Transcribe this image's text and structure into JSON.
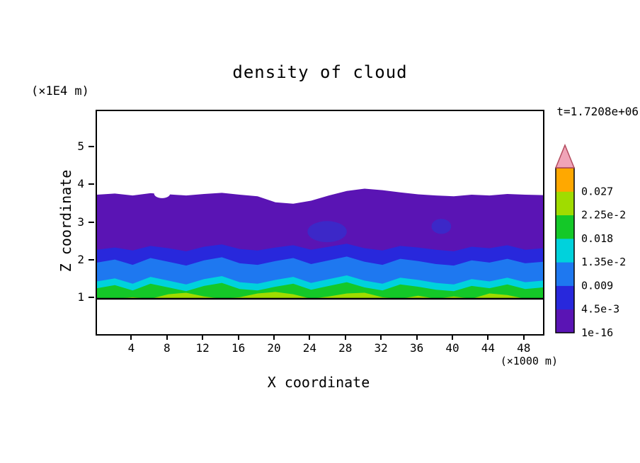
{
  "title": "density of cloud",
  "annotations": {
    "time": "t=1.7208e+06"
  },
  "axes": {
    "x": {
      "label": "X coordinate",
      "unit": "(×1000 m)",
      "ticks": [
        4,
        8,
        12,
        16,
        20,
        24,
        28,
        32,
        36,
        40,
        44,
        48
      ],
      "range": [
        0,
        50
      ]
    },
    "z": {
      "label": "Z coordinate",
      "unit": "(×1E4 m)",
      "ticks": [
        1,
        2,
        3,
        4,
        5
      ],
      "range": [
        0.06,
        5.98
      ]
    }
  },
  "colorbar": {
    "labels_bottom_to_top": [
      "1e-16",
      "4.5e-3",
      "0.009",
      "1.35e-2",
      "0.018",
      "2.25e-2",
      "0.027"
    ],
    "segment_colors_bottom_to_top": [
      "#5a14b4",
      "#2828dc",
      "#1e78f0",
      "#00d2dc",
      "#14c828",
      "#a0dc00",
      "#ffa800"
    ],
    "arrow_fill": "#f0a4b8",
    "arrow_stroke": "#b44b5e"
  },
  "chart_data": {
    "type": "heatmap",
    "subtype": "filled-contour",
    "title": "density of cloud",
    "xlabel": "X coordinate (×1000 m)",
    "ylabel": "Z coordinate (×1E4 m)",
    "xlim": [
      0,
      50
    ],
    "zlim": [
      0.06,
      5.98
    ],
    "levels": [
      "1e-16",
      "4.5e-3",
      "0.009",
      "1.35e-2",
      "0.018",
      "2.25e-2",
      "0.027"
    ],
    "base_z": 1.0,
    "x_samples": [
      0,
      2,
      4,
      6,
      8,
      10,
      12,
      14,
      16,
      18,
      20,
      22,
      24,
      26,
      28,
      30,
      32,
      34,
      36,
      38,
      40,
      42,
      44,
      46,
      48,
      50
    ],
    "bands_bottom_value_first": [
      {
        "name": "band-1e-16",
        "color": "#5a14b4",
        "top": [
          3.76,
          3.79,
          3.74,
          3.8,
          3.77,
          3.74,
          3.78,
          3.81,
          3.76,
          3.72,
          3.56,
          3.52,
          3.6,
          3.74,
          3.86,
          3.92,
          3.88,
          3.82,
          3.77,
          3.74,
          3.72,
          3.76,
          3.74,
          3.78,
          3.76,
          3.75
        ]
      },
      {
        "name": "band-4.5e-3",
        "color": "#2828dc",
        "top": [
          2.3,
          2.36,
          2.28,
          2.4,
          2.34,
          2.26,
          2.38,
          2.44,
          2.32,
          2.28,
          2.36,
          2.42,
          2.3,
          2.38,
          2.46,
          2.34,
          2.28,
          2.4,
          2.36,
          2.3,
          2.26,
          2.38,
          2.34,
          2.42,
          2.3,
          2.34
        ]
      },
      {
        "name": "band-0.009",
        "color": "#1e78f0",
        "top": [
          1.96,
          2.04,
          1.9,
          2.08,
          1.98,
          1.88,
          2.02,
          2.1,
          1.94,
          1.9,
          2.0,
          2.08,
          1.92,
          2.02,
          2.12,
          1.98,
          1.9,
          2.06,
          2.0,
          1.92,
          1.88,
          2.02,
          1.96,
          2.06,
          1.94,
          1.98
        ]
      },
      {
        "name": "band-1.35e-2",
        "color": "#00d2dc",
        "top": [
          1.46,
          1.54,
          1.4,
          1.58,
          1.48,
          1.38,
          1.52,
          1.6,
          1.44,
          1.4,
          1.5,
          1.58,
          1.42,
          1.52,
          1.62,
          1.48,
          1.4,
          1.56,
          1.5,
          1.42,
          1.38,
          1.52,
          1.46,
          1.56,
          1.44,
          1.48
        ]
      },
      {
        "name": "band-0.018",
        "color": "#14c828",
        "top": [
          1.28,
          1.36,
          1.22,
          1.4,
          1.3,
          1.2,
          1.34,
          1.42,
          1.26,
          1.22,
          1.32,
          1.4,
          1.24,
          1.34,
          1.44,
          1.3,
          1.22,
          1.38,
          1.32,
          1.24,
          1.2,
          1.34,
          1.28,
          1.38,
          1.26,
          1.3
        ]
      },
      {
        "name": "band-2.25e-2",
        "color": "#a0dc00",
        "top": [
          1.0,
          1.0,
          1.04,
          1.0,
          1.12,
          1.16,
          1.06,
          1.0,
          1.04,
          1.14,
          1.18,
          1.12,
          1.0,
          1.06,
          1.14,
          1.16,
          1.04,
          1.0,
          1.08,
          1.0,
          1.06,
          1.0,
          1.14,
          1.1,
          1.0,
          1.02
        ]
      }
    ],
    "holes_white": [
      {
        "x": 7.3,
        "z": 3.79,
        "rx": 0.9,
        "ry": 0.06
      }
    ],
    "islands": [
      {
        "x": 25.8,
        "z": 2.78,
        "rx": 2.2,
        "ry": 0.07,
        "color": "#3c28c8"
      },
      {
        "x": 38.6,
        "z": 2.92,
        "rx": 1.1,
        "ry": 0.05,
        "color": "#3c28c8"
      }
    ],
    "base_line_color": "#000000"
  }
}
